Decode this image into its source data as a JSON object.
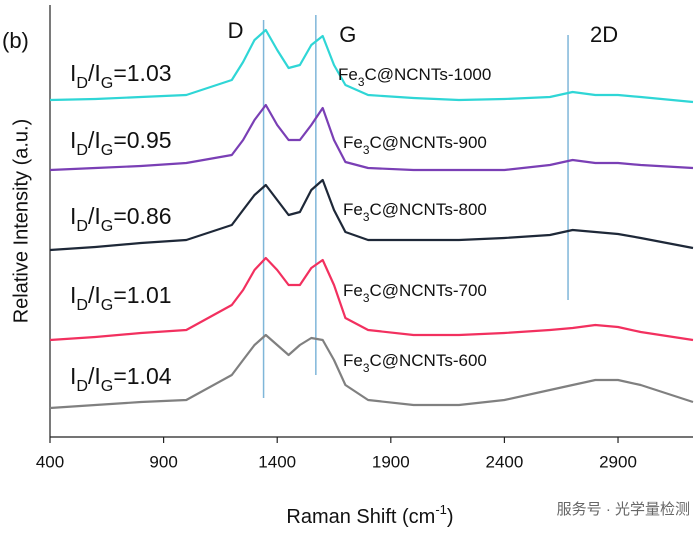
{
  "chart_data": {
    "type": "line",
    "panel_label": "(b)",
    "xlabel": "Raman Shift (cm-1)",
    "ylabel": "Relative Intensity (a.u.)",
    "xlim": [
      400,
      3230
    ],
    "xticks": [
      400,
      900,
      1400,
      1900,
      2400,
      2900
    ],
    "ylim": [
      0,
      432
    ],
    "x": [
      400,
      600,
      800,
      1000,
      1200,
      1250,
      1300,
      1350,
      1400,
      1450,
      1500,
      1550,
      1600,
      1650,
      1700,
      1800,
      2000,
      2200,
      2400,
      2600,
      2700,
      2800,
      2900,
      3000,
      3230
    ],
    "series": [
      {
        "name": "Fe3C@NCNTs-1000",
        "ratio_label": "ID/IG=1.03",
        "color": "#2fd6d6",
        "values": [
          337,
          338,
          340,
          342,
          357,
          375,
          397,
          407,
          387,
          369,
          372,
          392,
          401,
          372,
          352,
          342,
          339,
          337,
          338,
          340,
          345,
          342,
          342,
          340,
          335
        ]
      },
      {
        "name": "Fe3C@NCNTs-900",
        "ratio_label": "ID/IG=0.95",
        "color": "#7a3fb5",
        "values": [
          267,
          269,
          271,
          274,
          282,
          297,
          317,
          332,
          312,
          297,
          297,
          312,
          329,
          297,
          275,
          269,
          267,
          267,
          267,
          272,
          277,
          274,
          274,
          272,
          269
        ]
      },
      {
        "name": "Fe3C@NCNTs-800",
        "ratio_label": "ID/IG=0.86",
        "color": "#1e2838",
        "values": [
          187,
          190,
          194,
          197,
          212,
          227,
          242,
          252,
          237,
          222,
          225,
          247,
          257,
          227,
          205,
          197,
          197,
          197,
          199,
          202,
          207,
          205,
          203,
          199,
          189
        ]
      },
      {
        "name": "Fe3C@NCNTs-700",
        "ratio_label": "ID/IG=1.01",
        "color": "#f2305f",
        "values": [
          97,
          100,
          104,
          107,
          132,
          147,
          167,
          179,
          167,
          152,
          152,
          169,
          177,
          152,
          119,
          107,
          102,
          102,
          104,
          107,
          109,
          112,
          110,
          105,
          97
        ]
      },
      {
        "name": "Fe3C@NCNTs-600",
        "ratio_label": "ID/IG=1.04",
        "color": "#808080",
        "values": [
          29,
          32,
          35,
          37,
          62,
          77,
          92,
          102,
          92,
          82,
          92,
          99,
          97,
          77,
          52,
          37,
          32,
          32,
          37,
          47,
          52,
          57,
          57,
          52,
          35
        ]
      }
    ],
    "peak_lines": [
      {
        "label": "D",
        "x": 1340
      },
      {
        "label": "G",
        "x": 1570
      },
      {
        "label": "2D",
        "x": 2680
      }
    ]
  },
  "watermark": "服务号 · 光学量检测"
}
